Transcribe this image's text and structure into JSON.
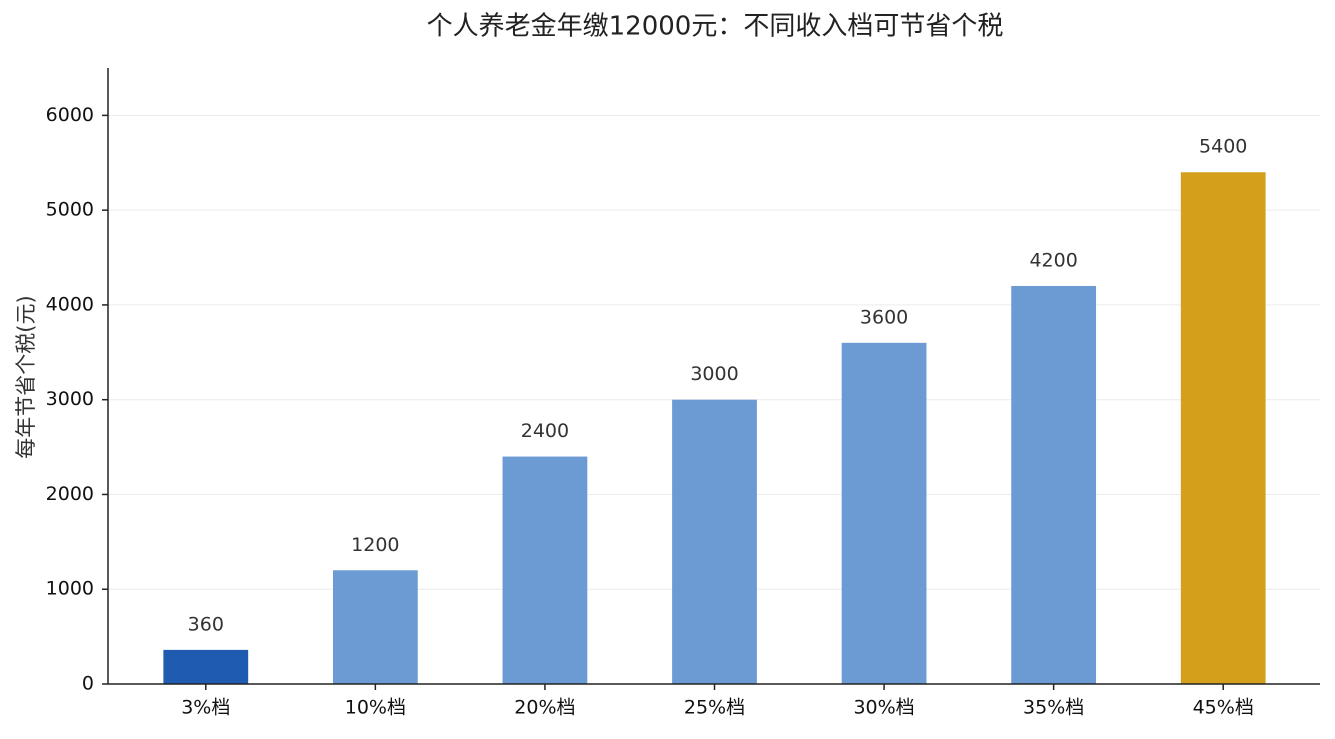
{
  "chart_data": {
    "type": "bar",
    "title": "个人养老金年缴12000元：不同收入档可节省个税",
    "y_label": "每年节省个税(元)",
    "categories": [
      "3%档",
      "10%档",
      "20%档",
      "25%档",
      "30%档",
      "35%档",
      "45%档"
    ],
    "values": [
      360,
      1200,
      2400,
      3000,
      3600,
      4200,
      5400
    ],
    "colors": [
      "#1f5bb0",
      "#6c9bd3",
      "#6c9bd3",
      "#6c9bd3",
      "#6c9bd3",
      "#6c9bd3",
      "#d4a01c"
    ],
    "ylim": [
      0,
      6500
    ],
    "yticks": [
      0,
      1000,
      2000,
      3000,
      4000,
      5000,
      6000
    ],
    "grid": true
  }
}
